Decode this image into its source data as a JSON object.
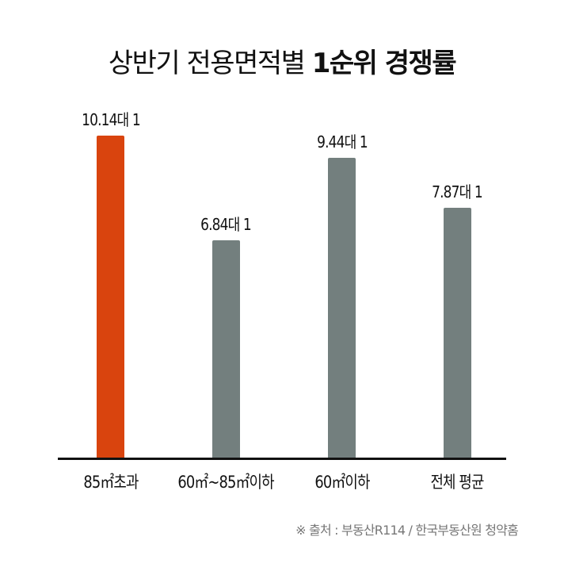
{
  "title": {
    "regular": "상반기 전용면적별 ",
    "bold": "1순위 경쟁률"
  },
  "source": "※ 출처 : 부동산R114 / 한국부동산원 청약홈",
  "colors": {
    "highlight": "#D9440E",
    "default": "#737F7E",
    "axis": "#111111",
    "source_text": "#777777"
  },
  "bars": [
    {
      "label": "85㎡초과",
      "value_text": "10.14대 1",
      "value": 10.14,
      "color": "#D9440E"
    },
    {
      "label": "60㎡~85㎡이하",
      "value_text": "6.84대 1",
      "value": 6.84,
      "color": "#737F7E"
    },
    {
      "label": "60㎡이하",
      "value_text": "9.44대 1",
      "value": 9.44,
      "color": "#737F7E"
    },
    {
      "label": "전체 평균",
      "value_text": "7.87대 1",
      "value": 7.87,
      "color": "#737F7E"
    }
  ],
  "chart_data": {
    "type": "bar",
    "title": "상반기 전용면적별 1순위 경쟁률",
    "categories": [
      "85㎡초과",
      "60㎡~85㎡이하",
      "60㎡이하",
      "전체 평균"
    ],
    "values": [
      10.14,
      6.84,
      9.44,
      7.87
    ],
    "data_labels": [
      "10.14대 1",
      "6.84대 1",
      "9.44대 1",
      "7.87대 1"
    ],
    "xlabel": "",
    "ylabel": "",
    "ylim": [
      0,
      10.14
    ],
    "grid": false,
    "legend": null,
    "highlighted_category": "85㎡초과",
    "annotation": "※ 출처 : 부동산R114 / 한국부동산원 청약홈"
  }
}
